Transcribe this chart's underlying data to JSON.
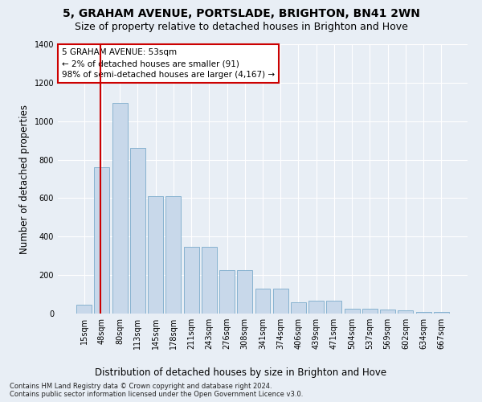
{
  "title": "5, GRAHAM AVENUE, PORTSLADE, BRIGHTON, BN41 2WN",
  "subtitle": "Size of property relative to detached houses in Brighton and Hove",
  "xlabel": "Distribution of detached houses by size in Brighton and Hove",
  "ylabel": "Number of detached properties",
  "footnote1": "Contains HM Land Registry data © Crown copyright and database right 2024.",
  "footnote2": "Contains public sector information licensed under the Open Government Licence v3.0.",
  "annotation_title": "5 GRAHAM AVENUE: 53sqm",
  "annotation_line1": "← 2% of detached houses are smaller (91)",
  "annotation_line2": "98% of semi-detached houses are larger (4,167) →",
  "bar_labels": [
    "15sqm",
    "48sqm",
    "80sqm",
    "113sqm",
    "145sqm",
    "178sqm",
    "211sqm",
    "243sqm",
    "276sqm",
    "308sqm",
    "341sqm",
    "374sqm",
    "406sqm",
    "439sqm",
    "471sqm",
    "504sqm",
    "537sqm",
    "569sqm",
    "602sqm",
    "634sqm",
    "667sqm"
  ],
  "bar_values": [
    45,
    760,
    1095,
    860,
    610,
    610,
    345,
    345,
    225,
    225,
    130,
    130,
    60,
    65,
    65,
    25,
    25,
    20,
    15,
    8,
    8
  ],
  "bar_color": "#c8d8ea",
  "bar_edge_color": "#7aaacb",
  "highlight_color": "#cc0000",
  "red_line_x": 0.93,
  "ylim": [
    0,
    1400
  ],
  "yticks": [
    0,
    200,
    400,
    600,
    800,
    1000,
    1200,
    1400
  ],
  "background_color": "#e8eef5",
  "plot_bg_color": "#e8eef5",
  "grid_color": "#ffffff",
  "title_fontsize": 10,
  "subtitle_fontsize": 9,
  "axis_label_fontsize": 8.5,
  "tick_fontsize": 7,
  "annotation_fontsize": 7.5,
  "footnote_fontsize": 6
}
